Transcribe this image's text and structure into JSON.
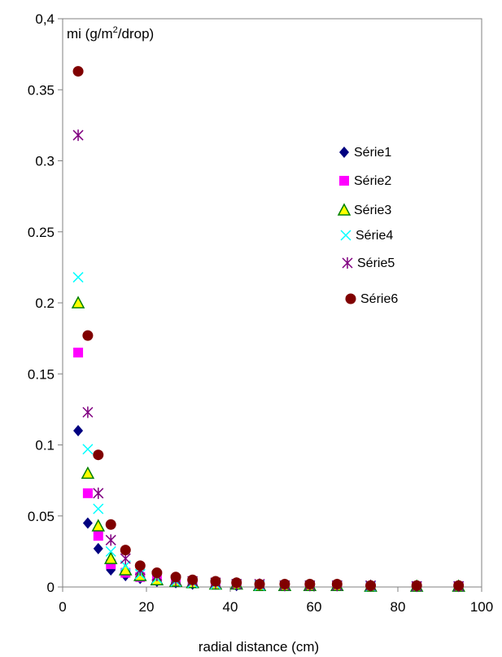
{
  "chart_data": {
    "type": "scatter",
    "title": "",
    "ylabel_prefix": "mi (g/m",
    "ylabel_sup": "2",
    "ylabel_suffix": "/drop)",
    "xlabel": "radial distance (cm)",
    "xlim": [
      0,
      100
    ],
    "ylim": [
      0,
      0.4
    ],
    "x_ticks": [
      "0",
      "20",
      "40",
      "60",
      "80",
      "100"
    ],
    "y_ticks": [
      "0",
      "0.05",
      "0.1",
      "0.15",
      "0.2",
      "0.25",
      "0.3",
      "0.35",
      "0,4"
    ],
    "grid": false,
    "legend_position": "right",
    "x": [
      3.7,
      6,
      8.5,
      11.5,
      15,
      18.5,
      22.5,
      27,
      31,
      36.5,
      41.5,
      47,
      53,
      59,
      65.5,
      73.5,
      84.5,
      94.5
    ],
    "series": [
      {
        "name": "Série1",
        "marker": "diamond",
        "color": "#000080",
        "values": [
          0.11,
          0.045,
          0.027,
          0.012,
          0.008,
          0.006,
          0.004,
          0.003,
          0.002,
          0.002,
          0.001,
          0.001,
          0.001,
          0.001,
          0.001,
          0.0005,
          0.0005,
          0.0005
        ]
      },
      {
        "name": "Série2",
        "marker": "square",
        "color": "#ff00ff",
        "values": [
          0.165,
          0.066,
          0.036,
          0.016,
          0.01,
          0.007,
          0.005,
          0.004,
          0.003,
          0.002,
          0.002,
          0.001,
          0.001,
          0.001,
          0.001,
          0.0005,
          0.0005,
          0.0005
        ]
      },
      {
        "name": "Série3",
        "marker": "triangle",
        "color": "#ffff00",
        "values": [
          0.2,
          0.08,
          0.043,
          0.02,
          0.012,
          0.008,
          0.005,
          0.004,
          0.003,
          0.002,
          0.002,
          0.001,
          0.001,
          0.001,
          0.001,
          0.0005,
          0.0005,
          0.0005
        ]
      },
      {
        "name": "Série4",
        "marker": "x",
        "color": "#00ffff",
        "values": [
          0.218,
          0.097,
          0.055,
          0.025,
          0.015,
          0.009,
          0.006,
          0.004,
          0.003,
          0.002,
          0.002,
          0.001,
          0.001,
          0.001,
          0.001,
          0.0005,
          0.0005,
          0.0005
        ]
      },
      {
        "name": "Série5",
        "marker": "asterisk",
        "color": "#800080",
        "values": [
          0.318,
          0.123,
          0.066,
          0.033,
          0.02,
          0.012,
          0.008,
          0.005,
          0.004,
          0.003,
          0.002,
          0.002,
          0.001,
          0.001,
          0.001,
          0.001,
          0.0005,
          0.0005
        ]
      },
      {
        "name": "Série6",
        "marker": "circle",
        "color": "#800000",
        "values": [
          0.363,
          0.177,
          0.093,
          0.044,
          0.026,
          0.015,
          0.01,
          0.007,
          0.005,
          0.004,
          0.003,
          0.002,
          0.002,
          0.002,
          0.002,
          0.001,
          0.001,
          0.001
        ]
      }
    ]
  }
}
